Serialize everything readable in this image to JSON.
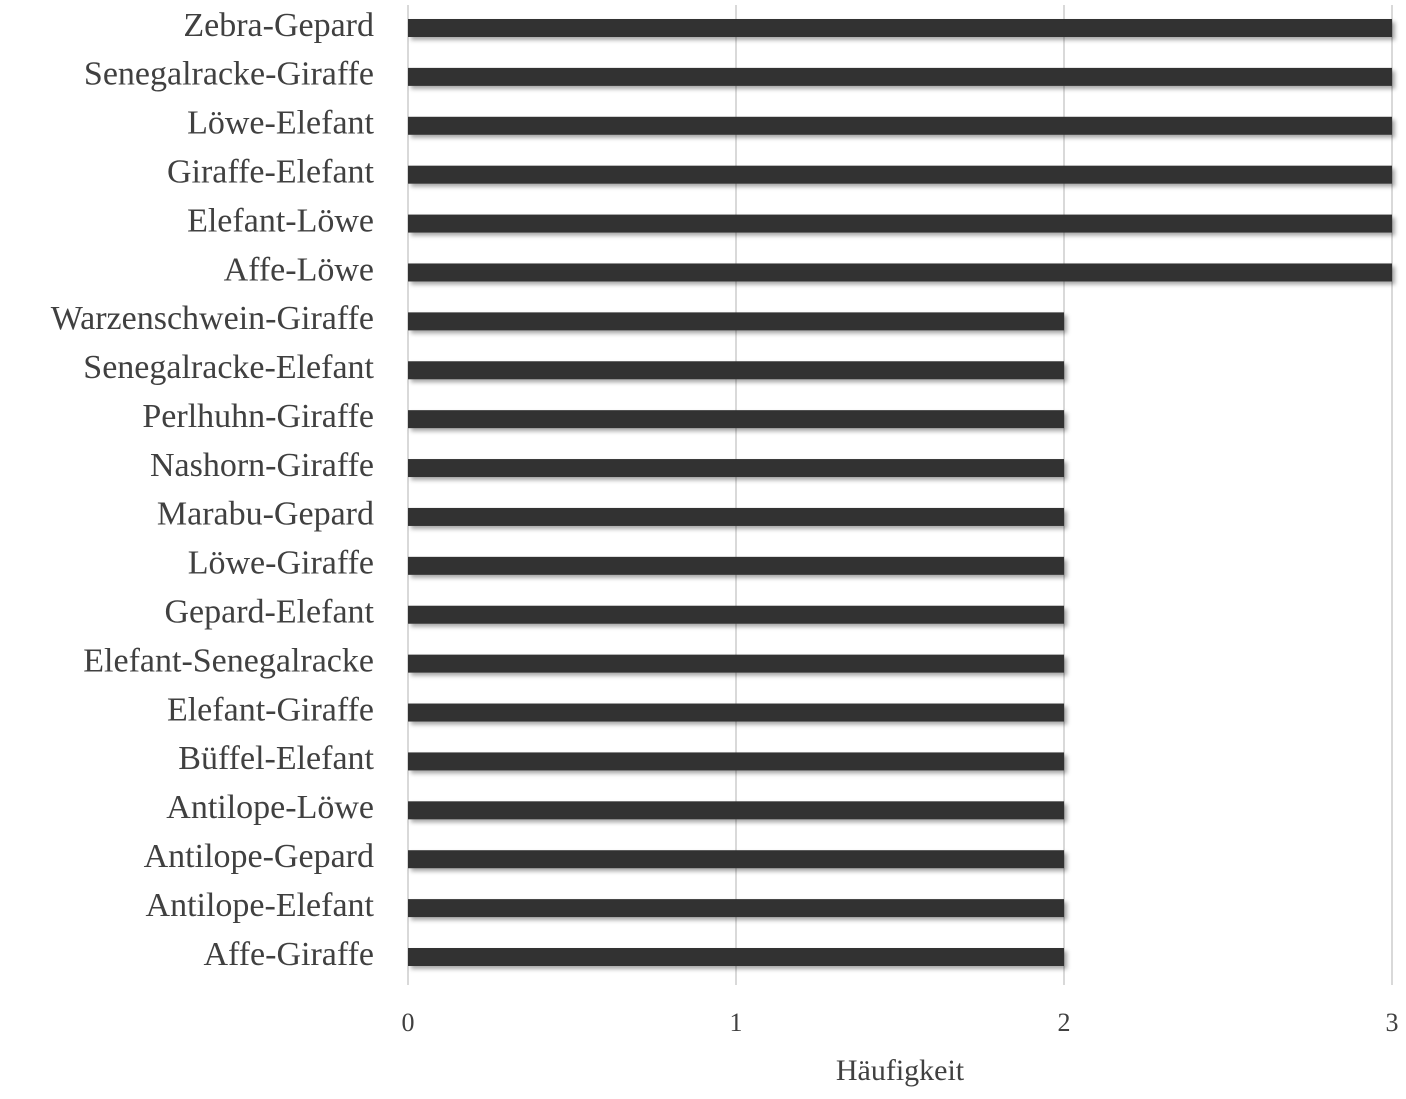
{
  "chart_data": {
    "type": "bar",
    "orientation": "horizontal",
    "categories": [
      "Zebra-Gepard",
      "Senegalracke-Giraffe",
      "Löwe-Elefant",
      "Giraffe-Elefant",
      "Elefant-Löwe",
      "Affe-Löwe",
      "Warzenschwein-Giraffe",
      "Senegalracke-Elefant",
      "Perlhuhn-Giraffe",
      "Nashorn-Giraffe",
      "Marabu-Gepard",
      "Löwe-Giraffe",
      "Gepard-Elefant",
      "Elefant-Senegalracke",
      "Elefant-Giraffe",
      "Büffel-Elefant",
      "Antilope-Löwe",
      "Antilope-Gepard",
      "Antilope-Elefant",
      "Affe-Giraffe"
    ],
    "values": [
      3,
      3,
      3,
      3,
      3,
      3,
      2,
      2,
      2,
      2,
      2,
      2,
      2,
      2,
      2,
      2,
      2,
      2,
      2,
      2
    ],
    "color": "#333333",
    "xlabel": "Häufigkeit",
    "xlim": [
      0,
      3
    ],
    "xticks": [
      0,
      1,
      2,
      3
    ],
    "grid": true
  }
}
